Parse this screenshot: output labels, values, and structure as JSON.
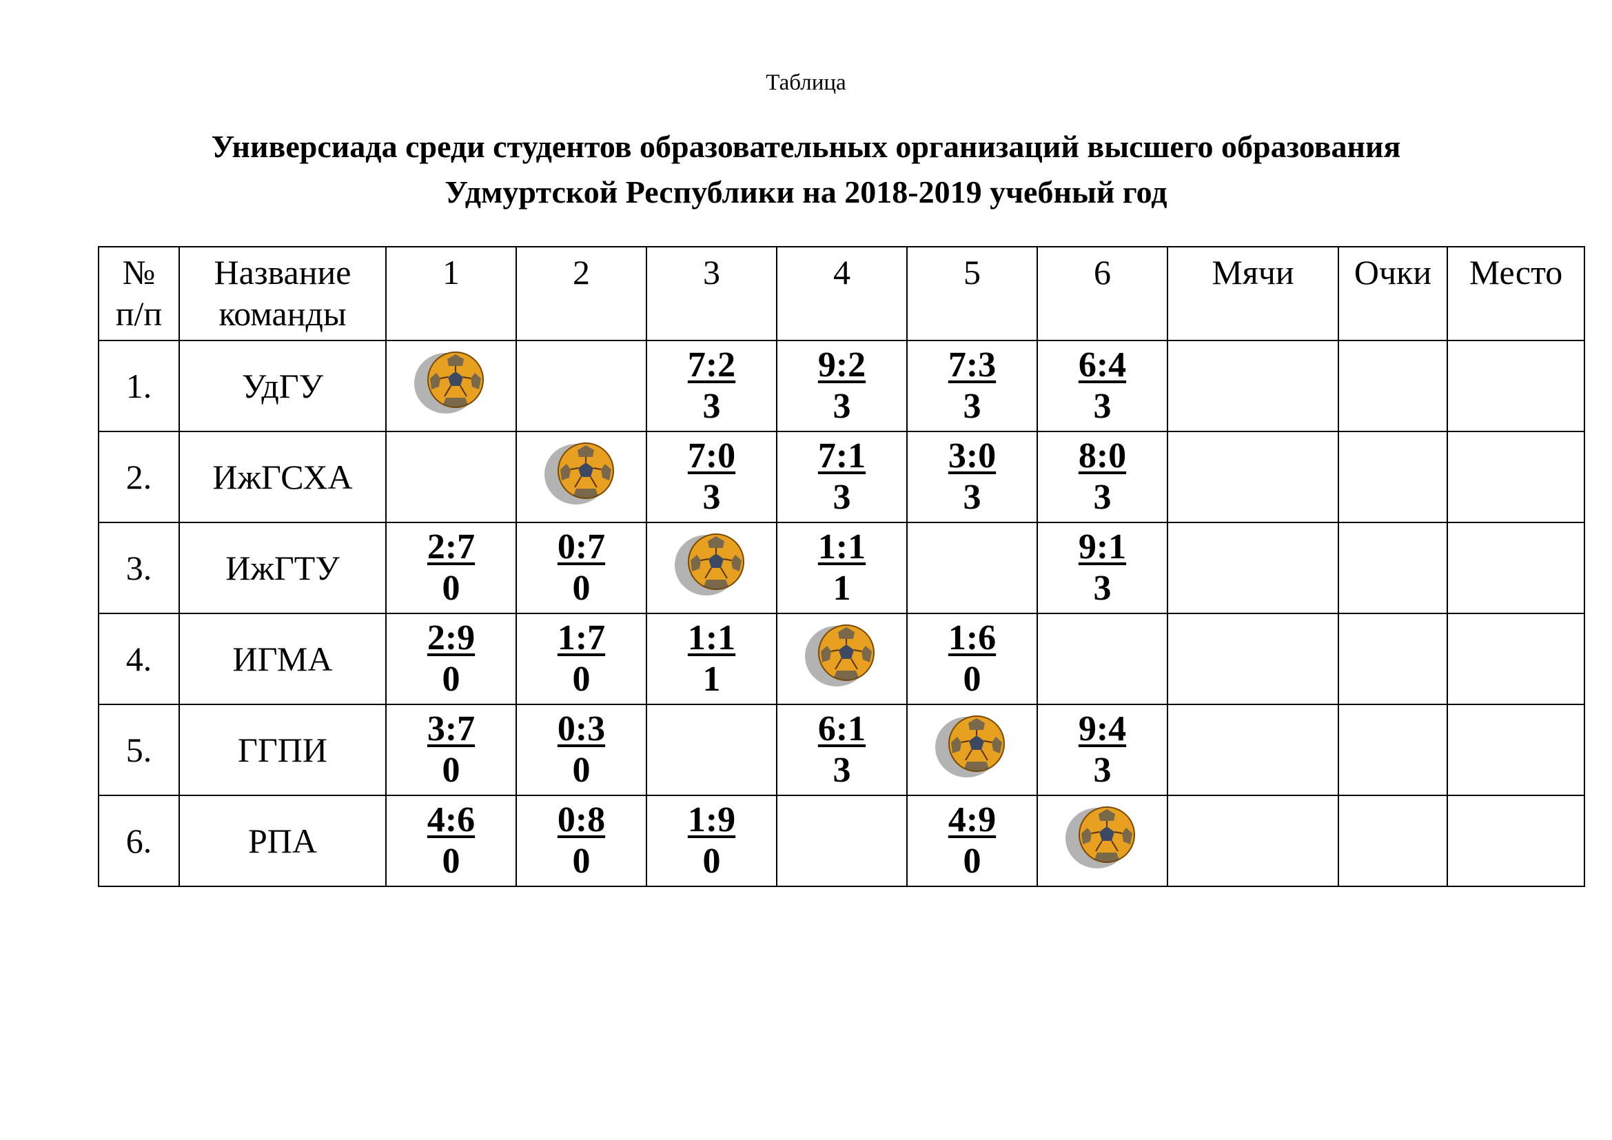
{
  "caption": "Таблица",
  "title": {
    "line1": "Универсиада среди студентов  образовательных организаций высшего образования",
    "line2": "Удмуртской Республики на 2018-2019 учебный год"
  },
  "headers": {
    "num": [
      "№",
      "п/п"
    ],
    "team": [
      "Название",
      "команды"
    ],
    "cols": [
      "1",
      "2",
      "3",
      "4",
      "5",
      "6"
    ],
    "balls": "Мячи",
    "points": "Очки",
    "place": "Место"
  },
  "rows": [
    {
      "num": "1.",
      "team": "УдГУ",
      "cells": [
        {
          "self": true
        },
        {},
        {
          "goals": "7:2",
          "pts": "3"
        },
        {
          "goals": "9:2",
          "pts": "3"
        },
        {
          "goals": "7:3",
          "pts": "3"
        },
        {
          "goals": "6:4",
          "pts": "3"
        }
      ],
      "balls": "",
      "points": "",
      "place": ""
    },
    {
      "num": "2.",
      "team": "ИжГСХА",
      "cells": [
        {},
        {
          "self": true
        },
        {
          "goals": "7:0",
          "pts": "3"
        },
        {
          "goals": "7:1",
          "pts": "3"
        },
        {
          "goals": "3:0",
          "pts": "3"
        },
        {
          "goals": "8:0",
          "pts": "3"
        }
      ],
      "balls": "",
      "points": "",
      "place": ""
    },
    {
      "num": "3.",
      "team": "ИжГТУ",
      "cells": [
        {
          "goals": "2:7",
          "pts": "0"
        },
        {
          "goals": "0:7",
          "pts": "0"
        },
        {
          "self": true
        },
        {
          "goals": "1:1",
          "pts": "1"
        },
        {},
        {
          "goals": "9:1",
          "pts": "3"
        }
      ],
      "balls": "",
      "points": "",
      "place": ""
    },
    {
      "num": "4.",
      "team": "ИГМА",
      "cells": [
        {
          "goals": "2:9",
          "pts": "0"
        },
        {
          "goals": "1:7",
          "pts": "0"
        },
        {
          "goals": "1:1",
          "pts": "1"
        },
        {
          "self": true
        },
        {
          "goals": "1:6",
          "pts": "0"
        },
        {}
      ],
      "balls": "",
      "points": "",
      "place": ""
    },
    {
      "num": "5.",
      "team": "ГГПИ",
      "cells": [
        {
          "goals": "3:7",
          "pts": "0"
        },
        {
          "goals": "0:3",
          "pts": "0"
        },
        {},
        {
          "goals": "6:1",
          "pts": "3"
        },
        {
          "self": true
        },
        {
          "goals": "9:4",
          "pts": "3"
        }
      ],
      "balls": "",
      "points": "",
      "place": ""
    },
    {
      "num": "6.",
      "team": "РПА",
      "cells": [
        {
          "goals": "4:6",
          "pts": "0"
        },
        {
          "goals": "0:8",
          "pts": "0"
        },
        {
          "goals": "1:9",
          "pts": "0"
        },
        {},
        {
          "goals": "4:9",
          "pts": "0"
        },
        {
          "self": true
        }
      ],
      "balls": "",
      "points": "",
      "place": ""
    }
  ],
  "icons": {
    "self_match": "handball-ball-icon"
  },
  "colors": {
    "ball_fill": "#e8a020",
    "ball_panel": "#1f3a6e",
    "ball_shadow": "#9a9a9a"
  }
}
